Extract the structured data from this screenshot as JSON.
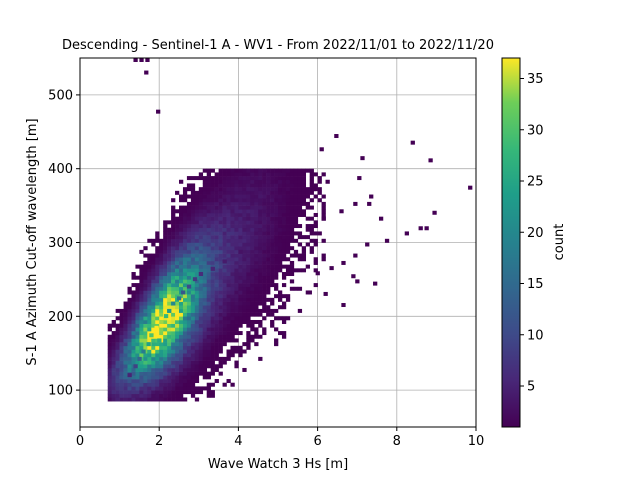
{
  "chart_data": {
    "type": "heatmap",
    "title": "Descending - Sentinel-1 A - WV1 - From 2022/11/01 to 2022/11/20",
    "xlabel": "Wave Watch 3 Hs [m]",
    "ylabel": "S-1 A Azimuth Cut-off wavelength [m]",
    "xlim": [
      0,
      10
    ],
    "ylim": [
      50,
      550
    ],
    "x_ticks": [
      0,
      2,
      4,
      6,
      8,
      10
    ],
    "y_ticks": [
      100,
      200,
      300,
      400,
      500
    ],
    "grid": true,
    "colormap": "viridis",
    "colorbar": {
      "label": "count",
      "range": [
        1,
        37
      ],
      "ticks": [
        5,
        10,
        15,
        20,
        25,
        30,
        35
      ]
    },
    "bin_size": {
      "x": 0.1,
      "y": 5
    },
    "points": [
      [
        1.88,
        182,
        37
      ],
      [
        2.0,
        190,
        34
      ],
      [
        1.75,
        172,
        30
      ],
      [
        2.12,
        198,
        28
      ],
      [
        1.95,
        165,
        26
      ],
      [
        1.68,
        160,
        24
      ],
      [
        2.2,
        205,
        22
      ],
      [
        2.3,
        215,
        20
      ],
      [
        2.45,
        222,
        16
      ],
      [
        1.55,
        150,
        18
      ],
      [
        1.45,
        140,
        14
      ],
      [
        2.55,
        230,
        12
      ],
      [
        2.7,
        238,
        10
      ],
      [
        1.35,
        130,
        9
      ],
      [
        2.85,
        248,
        8
      ],
      [
        3.0,
        255,
        6
      ],
      [
        1.2,
        118,
        5
      ],
      [
        3.3,
        262,
        5
      ],
      [
        3.6,
        272,
        4
      ],
      [
        4.0,
        285,
        3
      ]
    ],
    "scatter_points": [
      [
        1.35,
        545,
        1
      ],
      [
        1.5,
        545,
        1
      ],
      [
        1.65,
        545,
        1
      ],
      [
        1.62,
        528,
        1
      ],
      [
        1.92,
        475,
        1
      ],
      [
        6.42,
        442,
        1
      ],
      [
        6.05,
        424,
        1
      ],
      [
        8.35,
        433,
        1
      ],
      [
        8.8,
        409,
        1
      ],
      [
        7.08,
        412,
        1
      ],
      [
        9.8,
        372,
        1
      ],
      [
        8.9,
        338,
        1
      ],
      [
        8.7,
        317,
        1
      ],
      [
        8.55,
        317,
        1
      ],
      [
        8.2,
        310,
        1
      ],
      [
        7.7,
        300,
        1
      ],
      [
        7.2,
        295,
        1
      ],
      [
        6.9,
        280,
        1
      ],
      [
        6.6,
        270,
        1
      ],
      [
        6.3,
        263,
        1
      ],
      [
        5.95,
        256,
        1
      ],
      [
        6.85,
        252,
        1
      ],
      [
        7.4,
        242,
        1
      ],
      [
        6.95,
        245,
        1
      ],
      [
        5.4,
        235,
        1
      ],
      [
        5.75,
        230,
        1
      ],
      [
        6.15,
        228,
        1
      ],
      [
        6.6,
        213,
        1
      ],
      [
        7.55,
        330,
        1
      ],
      [
        7.3,
        360,
        1
      ],
      [
        7.0,
        385,
        1
      ],
      [
        6.2,
        380,
        1
      ],
      [
        5.85,
        370,
        1
      ],
      [
        5.5,
        355,
        1
      ],
      [
        6.9,
        350,
        1
      ],
      [
        7.25,
        350,
        1
      ],
      [
        6.55,
        340,
        1
      ],
      [
        6.1,
        330,
        1
      ]
    ]
  }
}
